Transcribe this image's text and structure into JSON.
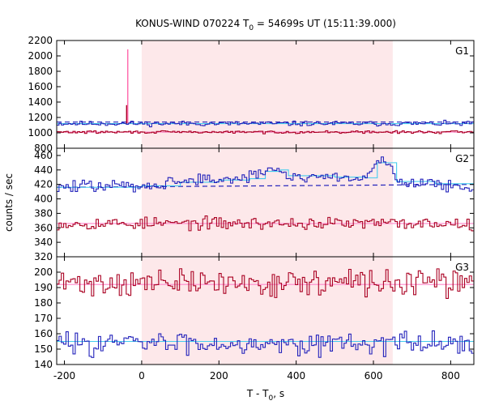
{
  "chart_data": {
    "type": "line",
    "title": {
      "prefix": "KONUS-WIND 070224 T",
      "sub": "0",
      "suffix": " = 54699s UT (15:11:39.000)"
    },
    "xlabel": {
      "prefix": "T - T",
      "sub": "0",
      "suffix": ", s"
    },
    "ylabel": "counts / sec",
    "xlim": [
      -220,
      860
    ],
    "xticks": [
      -200,
      0,
      200,
      400,
      600,
      800
    ],
    "shaded_region": {
      "x": [
        0,
        650
      ],
      "color": "#fde8ea"
    },
    "grid": false,
    "panels": [
      {
        "label": "G1",
        "ylim": [
          800,
          2200
        ],
        "yticks": [
          800,
          1000,
          1200,
          1400,
          1600,
          1800,
          2000,
          2200
        ],
        "series": [
          {
            "color": "#2222bb",
            "base": 1120,
            "amp": 22,
            "seed": 11
          },
          {
            "color": "#aa0022",
            "base": 1010,
            "amp": 12,
            "seed": 29
          }
        ],
        "fits": [
          {
            "color": "#44ccee",
            "x": [
              -220,
              860
            ],
            "y": [
              1120,
              1120
            ]
          },
          {
            "color": "#ff88cc",
            "x": [
              -220,
              860
            ],
            "y": [
              1010,
              1010
            ]
          }
        ],
        "background": [
          {
            "color": "#2222bb",
            "dash": true,
            "y": 1140
          },
          {
            "color": "#aa0022",
            "dash": true,
            "y": 1010
          }
        ],
        "spikes": [
          {
            "color": "#ff66aa",
            "x": -36,
            "y": 2085
          },
          {
            "color": "#aa0022",
            "x": -39,
            "y": 1360
          }
        ]
      },
      {
        "label": "G2",
        "ylim": [
          320,
          470
        ],
        "yticks": [
          320,
          340,
          360,
          380,
          400,
          420,
          440,
          460
        ],
        "series": [
          {
            "color": "#2222bb",
            "amp": 6,
            "seed": 47,
            "profile": [
              [
                -220,
                416
              ],
              [
                -100,
                418
              ],
              [
                0,
                418
              ],
              [
                100,
                425
              ],
              [
                200,
                427
              ],
              [
                280,
                428
              ],
              [
                320,
                440
              ],
              [
                360,
                440
              ],
              [
                380,
                430
              ],
              [
                440,
                432
              ],
              [
                500,
                430
              ],
              [
                580,
                428
              ],
              [
                610,
                452
              ],
              [
                640,
                452
              ],
              [
                660,
                425
              ],
              [
                760,
                420
              ],
              [
                860,
                418
              ]
            ]
          },
          {
            "color": "#aa0022",
            "base": 366,
            "amp": 6,
            "seed": 53
          }
        ],
        "fits": [
          {
            "color": "#44ccee",
            "x": [
              -220,
              0,
              100,
              200,
              280,
              320,
              360,
              380,
              440,
              500,
              580,
              610,
              640,
              660,
              760,
              860
            ],
            "y": [
              416,
              418,
              423,
              426,
              428,
              438,
              440,
              432,
              432,
              430,
              429,
              450,
              450,
              424,
              421,
              419
            ]
          },
          {
            "color": "#ff88cc",
            "x": [
              -220,
              860
            ],
            "y": [
              366,
              366
            ]
          }
        ],
        "background": [
          {
            "color": "#2222bb",
            "dash": true,
            "y": [
              416,
              420
            ]
          }
        ],
        "spikes": []
      },
      {
        "label": "G3",
        "ylim": [
          140,
          210
        ],
        "yticks": [
          140,
          150,
          160,
          170,
          180,
          190,
          200
        ],
        "series": [
          {
            "color": "#aa0022",
            "base": 193,
            "amp": 6,
            "seed": 71
          },
          {
            "color": "#2222bb",
            "base": 154,
            "amp": 5,
            "seed": 83
          }
        ],
        "fits": [
          {
            "color": "#ff88cc",
            "x": [
              -220,
              860
            ],
            "y": [
              192,
              192
            ]
          },
          {
            "color": "#44ccee",
            "x": [
              -220,
              860
            ],
            "y": [
              155,
              155
            ]
          }
        ],
        "background": [],
        "spikes": []
      }
    ]
  }
}
